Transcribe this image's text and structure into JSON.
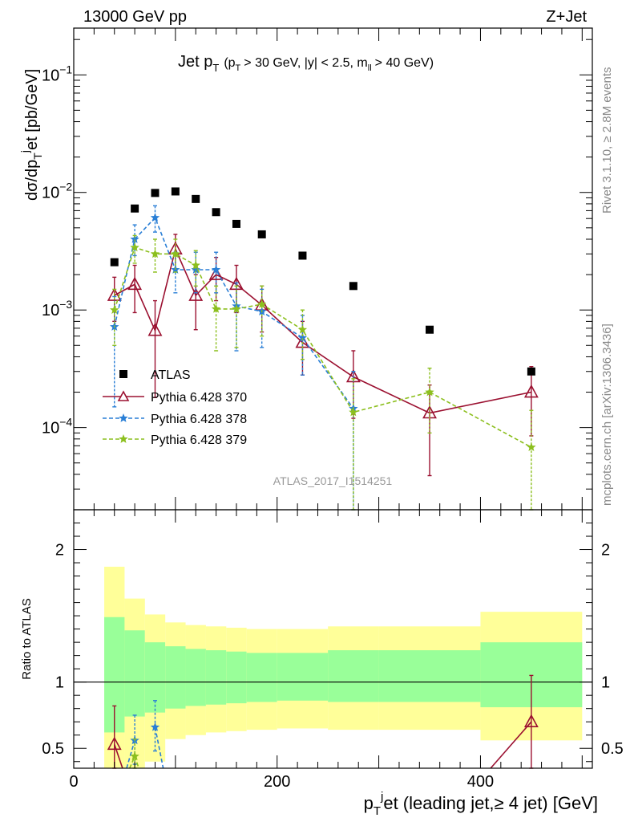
{
  "header": {
    "left": "13000 GeV pp",
    "right": "Z+Jet"
  },
  "side_labels": {
    "top": "Rivet 3.1.10, ≥ 2.8M events",
    "bottom": "mcplots.cern.ch [arXiv:1306.3436]"
  },
  "watermark": "ATLAS_2017_I1514251",
  "chart_data": [
    {
      "type": "scatter",
      "panel": "main",
      "title": {
        "main": "Jet p",
        "main_sub": "T",
        "cut1": "(p",
        "cut1_sub": "T",
        "cut2": "> 30 GeV, |y| < 2.5, m",
        "cut2_sub": "ll",
        "cut3": "> 40 GeV)"
      },
      "ylabel": {
        "a": "dσ/dp",
        "a_sub": "T",
        "b": "j",
        "c": "et [pb/GeV]"
      },
      "yscale": "log",
      "ylim": [
        2e-05,
        0.25
      ],
      "xlim": [
        0,
        510
      ],
      "yticks": [
        {
          "value": 0.1,
          "base": "10",
          "exp": "−1"
        },
        {
          "value": 0.01,
          "base": "10",
          "exp": "−2"
        },
        {
          "value": 0.001,
          "base": "10",
          "exp": "−3"
        },
        {
          "value": 0.0001,
          "base": "10",
          "exp": "−4"
        }
      ],
      "legend_position": "lower-left",
      "series": [
        {
          "name": "ATLAS",
          "color": "#000000",
          "marker": "square",
          "line": "none",
          "x": [
            40,
            60,
            80,
            100,
            120,
            140,
            160,
            185,
            225,
            275,
            350,
            450
          ],
          "y": [
            0.00255,
            0.0073,
            0.0099,
            0.0102,
            0.0088,
            0.0068,
            0.0054,
            0.0044,
            0.0029,
            0.0016,
            0.00068,
            0.0003
          ]
        },
        {
          "name": "Pythia 6.428 370",
          "color": "#9b1030",
          "marker": "triangle-open",
          "line": "solid",
          "x": [
            40,
            60,
            80,
            100,
            120,
            140,
            160,
            185,
            225,
            275,
            350,
            450
          ],
          "y": [
            0.00133,
            0.00165,
            0.00067,
            0.0033,
            0.00133,
            0.002,
            0.00165,
            0.0011,
            0.00053,
            0.00027,
            0.000133,
            0.0002
          ],
          "ylow": [
            0.0008,
            0.00095,
            0.00018,
            0.0022,
            0.00068,
            0.0012,
            0.00095,
            0.00065,
            0.00028,
            0.00012,
            3.9e-05,
            8.5e-05
          ],
          "yhigh": [
            0.0019,
            0.0024,
            0.0012,
            0.0044,
            0.002,
            0.0028,
            0.0024,
            0.0016,
            0.0008,
            0.00045,
            0.00023,
            0.00033
          ]
        },
        {
          "name": "Pythia 6.428 378",
          "color": "#2a7fd6",
          "marker": "star",
          "line": "dashed",
          "x": [
            40,
            60,
            80,
            100,
            120,
            140,
            160,
            185,
            225,
            275
          ],
          "y": [
            0.00072,
            0.004,
            0.0061,
            0.0022,
            0.0022,
            0.0022,
            0.00108,
            0.00097,
            0.00058,
            0.000145
          ],
          "ylow": [
            0.00015,
            0.0029,
            0.0046,
            0.0014,
            0.0014,
            0.0014,
            0.00045,
            0.00048,
            0.00028,
            1e-05
          ],
          "yhigh": [
            0.0013,
            0.0053,
            0.0077,
            0.0031,
            0.0031,
            0.0031,
            0.0017,
            0.0015,
            0.0009,
            0.0003
          ]
        },
        {
          "name": "Pythia 6.428 379",
          "color": "#8cbf1e",
          "marker": "star",
          "line": "dashed",
          "x": [
            40,
            60,
            80,
            100,
            120,
            140,
            160,
            185,
            225,
            275,
            350,
            450
          ],
          "y": [
            0.001,
            0.0034,
            0.003,
            0.003,
            0.0024,
            0.00102,
            0.00102,
            0.00112,
            0.00068,
            0.000135,
            0.0002,
            6.8e-05
          ],
          "ylow": [
            0.0005,
            0.0025,
            0.0021,
            0.0021,
            0.0016,
            0.00045,
            0.00048,
            0.0006,
            0.00038,
            1e-05,
            9e-05,
            1e-05
          ],
          "yhigh": [
            0.0015,
            0.0043,
            0.004,
            0.004,
            0.0032,
            0.0016,
            0.0016,
            0.0016,
            0.001,
            0.00026,
            0.00032,
            0.00014
          ]
        }
      ]
    },
    {
      "type": "line",
      "panel": "ratio",
      "ylabel": "Ratio to ATLAS",
      "xlabel": {
        "a": "p",
        "a_sub": "T",
        "b": "j",
        "c": "et (leading jet,≥ 4 jet) [GeV]"
      },
      "ylim": [
        0.35,
        2.3
      ],
      "xlim": [
        0,
        510
      ],
      "yticks": [
        0.5,
        1,
        2
      ],
      "xticks": [
        0,
        200,
        400
      ],
      "reference_line": 1,
      "bands": {
        "xedges": [
          30,
          50,
          70,
          90,
          110,
          130,
          150,
          170,
          200,
          250,
          300,
          400,
          500
        ],
        "yellow_low": [
          0.3,
          0.3,
          0.4,
          0.57,
          0.6,
          0.62,
          0.63,
          0.64,
          0.65,
          0.64,
          0.64,
          0.56
        ],
        "yellow_high": [
          1.87,
          1.63,
          1.51,
          1.45,
          1.43,
          1.42,
          1.41,
          1.4,
          1.4,
          1.42,
          1.42,
          1.53
        ],
        "green_low": [
          0.62,
          0.74,
          0.77,
          0.8,
          0.82,
          0.83,
          0.84,
          0.85,
          0.86,
          0.85,
          0.85,
          0.81
        ],
        "green_high": [
          1.49,
          1.39,
          1.3,
          1.27,
          1.25,
          1.24,
          1.23,
          1.22,
          1.22,
          1.24,
          1.24,
          1.3
        ]
      },
      "series": [
        {
          "name": "Pythia 6.428 370",
          "color": "#9b1030",
          "marker": "triangle-open",
          "line": "solid",
          "x": [
            40,
            450
          ],
          "y": [
            0.53,
            0.7
          ],
          "ylow": [
            0.32,
            0.3
          ],
          "yhigh": [
            0.82,
            1.05
          ],
          "trail_from": [
            [
              40,
              0.53
            ],
            [
              48,
              0.3
            ]
          ],
          "trail_to": [
            [
              410,
              0.3
            ],
            [
              450,
              0.7
            ]
          ]
        },
        {
          "name": "Pythia 6.428 378",
          "color": "#2a7fd6",
          "marker": "star",
          "line": "dashed",
          "x": [
            60,
            80
          ],
          "y": [
            0.56,
            0.66
          ],
          "ylow": [
            0.38,
            0.48
          ],
          "yhigh": [
            0.75,
            0.86
          ],
          "trail_from": [
            [
              52,
              0.3
            ],
            [
              60,
              0.56
            ]
          ],
          "trail_to": [
            [
              80,
              0.66
            ],
            [
              88,
              0.3
            ]
          ]
        },
        {
          "name": "Pythia 6.428 379",
          "color": "#8cbf1e",
          "marker": "star",
          "line": "dashed",
          "x": [
            60
          ],
          "y": [
            0.44
          ],
          "ylow": [
            0.3
          ],
          "yhigh": [
            0.57
          ],
          "trail_from": [
            [
              55,
              0.3
            ],
            [
              60,
              0.44
            ]
          ],
          "trail_to": [
            [
              60,
              0.44
            ],
            [
              64,
              0.3
            ]
          ]
        }
      ]
    }
  ]
}
